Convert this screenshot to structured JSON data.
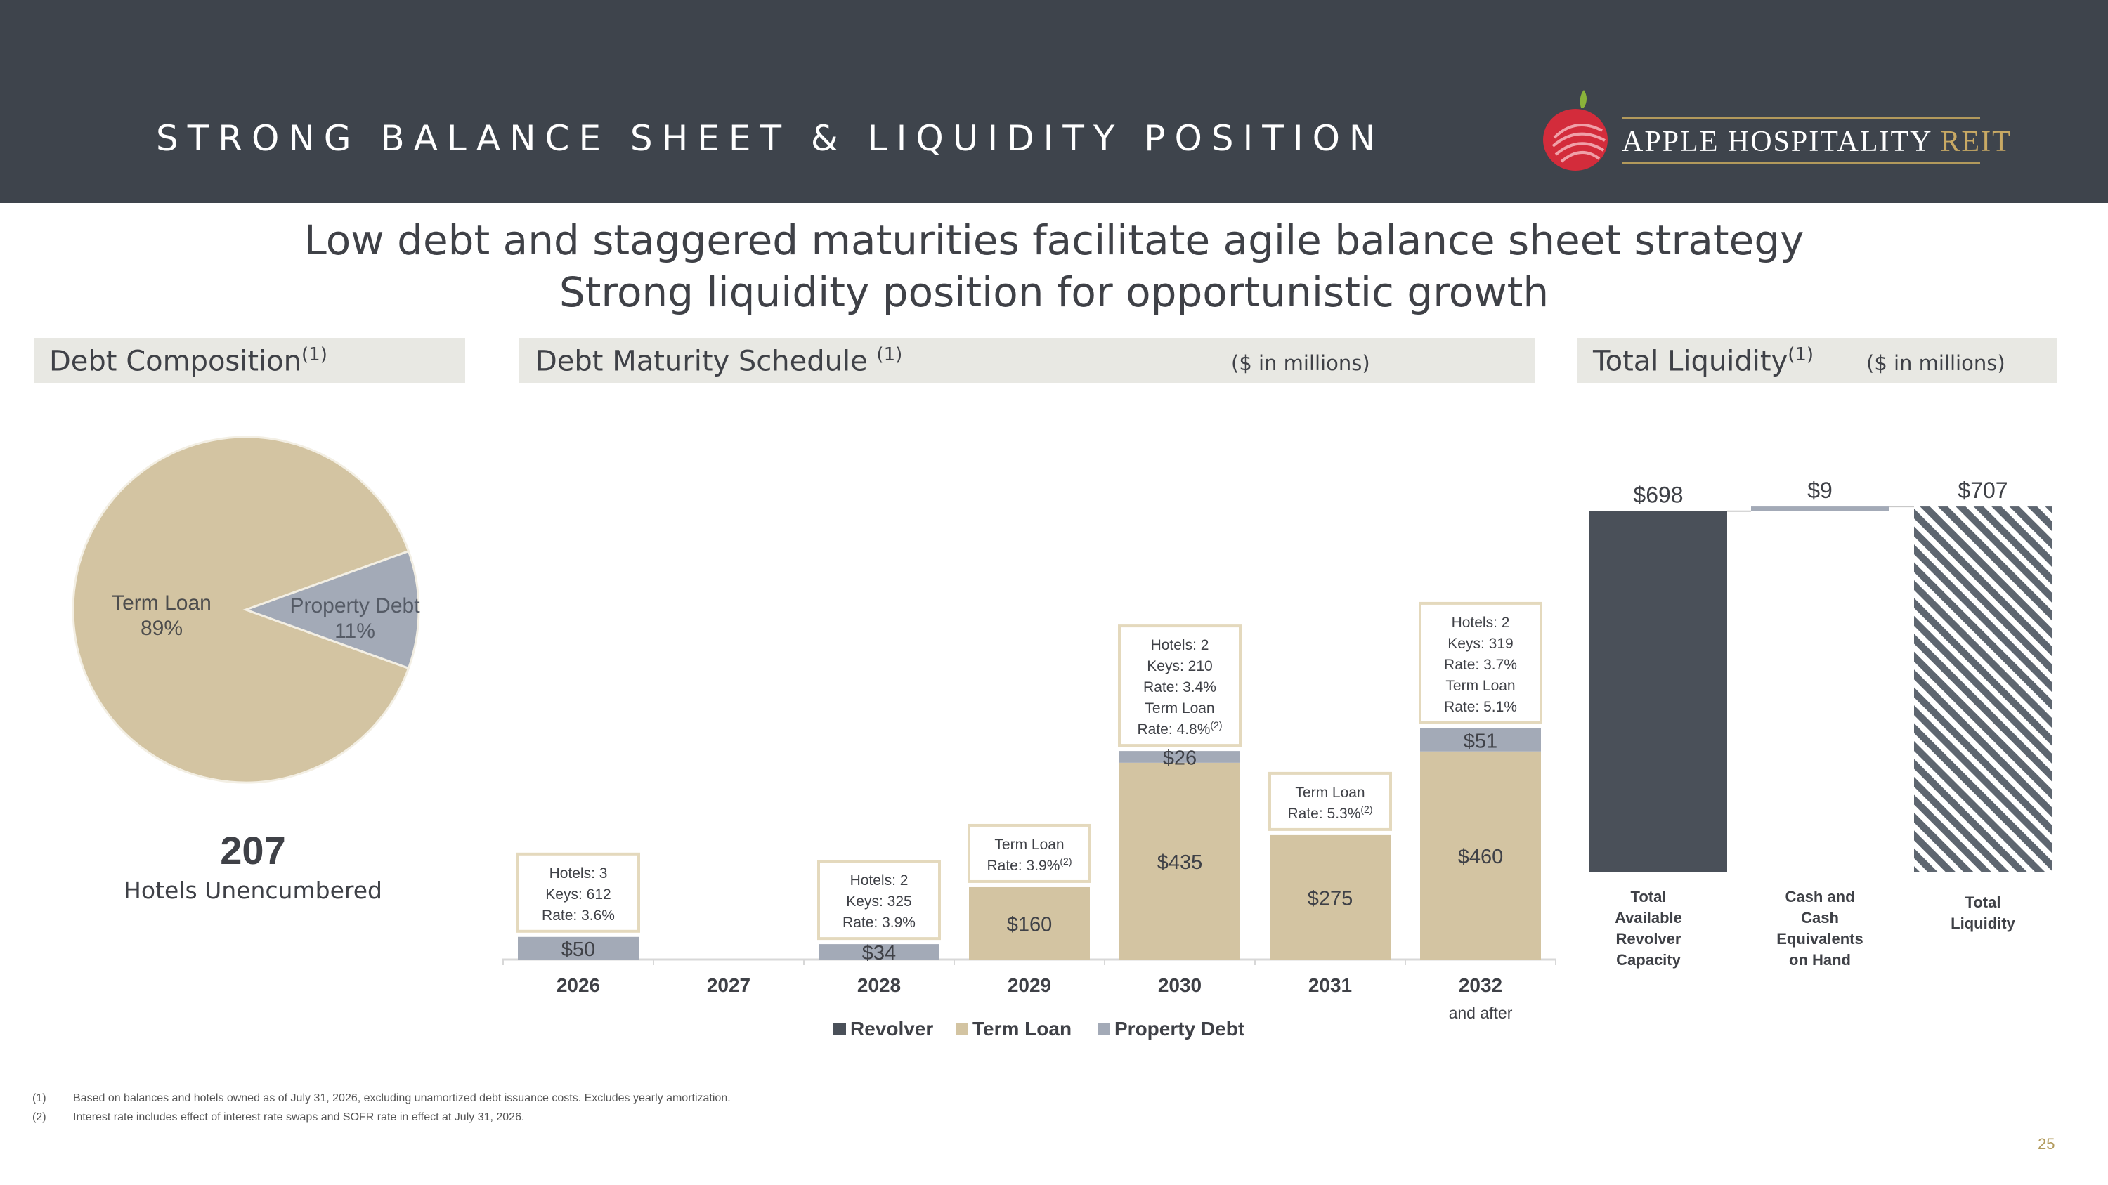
{
  "header": {
    "title": "STRONG BALANCE SHEET & LIQUIDITY POSITION",
    "brand_name": "APPLE HOSPITALITY",
    "brand_suffix": "REIT",
    "logo_icon": "apple-logo-icon"
  },
  "headline": {
    "line1": "Low debt and staggered maturities facilitate agile balance sheet strategy",
    "line2": "Strong liquidity position for opportunistic growth"
  },
  "panels": {
    "composition": {
      "title": "Debt Composition",
      "note": "(1)"
    },
    "maturity": {
      "title": "Debt Maturity Schedule ",
      "note": "(1)",
      "unit": "($ in millions)"
    },
    "liquidity": {
      "title": "Total Liquidity",
      "note": "(1)",
      "unit": "($ in millions)"
    }
  },
  "unencumbered": {
    "count": "207",
    "caption": "Hotels Unencumbered"
  },
  "colors": {
    "term_loan": "#d3c4a2",
    "property_debt": "#a3aab7",
    "revolver": "#4a5059",
    "header_bg": "#3e444c",
    "accent": "#b29a5c"
  },
  "chart_data": [
    {
      "type": "pie",
      "title": "Debt Composition",
      "slices": [
        {
          "label": "Term Loan",
          "percent_label": "89%",
          "value": 89,
          "color": "#d3c4a2"
        },
        {
          "label": "Property Debt",
          "percent_label": "11%",
          "value": 11,
          "color": "#a3aab7"
        }
      ]
    },
    {
      "type": "bar",
      "stacked": true,
      "title": "Debt Maturity Schedule",
      "unit": "($ in millions)",
      "categories": [
        "2026",
        "2027",
        "2028",
        "2029",
        "2030",
        "2031",
        "2032"
      ],
      "category_sublabels": [
        "",
        "",
        "",
        "",
        "",
        "",
        "and after"
      ],
      "series": [
        {
          "name": "Revolver",
          "color": "#4a5059",
          "values": [
            0,
            0,
            0,
            0,
            0,
            0,
            0
          ],
          "labels": [
            "",
            "",
            "",
            "",
            "",
            "",
            ""
          ]
        },
        {
          "name": "Term Loan",
          "color": "#d3c4a2",
          "values": [
            0,
            0,
            0,
            160,
            435,
            275,
            460
          ],
          "labels": [
            "",
            "",
            "",
            "$160",
            "$435",
            "$275",
            "$460"
          ]
        },
        {
          "name": "Property Debt",
          "color": "#a3aab7",
          "values": [
            50,
            0,
            34,
            0,
            26,
            0,
            51
          ],
          "labels": [
            "$50",
            "",
            "$34",
            "",
            "$26",
            "",
            "$51"
          ]
        }
      ],
      "annotations": [
        {
          "category": "2026",
          "lines": [
            "Hotels: 3",
            "Keys: 612",
            "Rate: 3.6%"
          ],
          "sup": ""
        },
        {
          "category": "2028",
          "lines": [
            "Hotels: 2",
            "Keys: 325",
            "Rate: 3.9%"
          ],
          "sup": ""
        },
        {
          "category": "2029",
          "lines": [
            "Term Loan",
            "Rate: 3.9%"
          ],
          "sup": "(2)"
        },
        {
          "category": "2030",
          "lines": [
            "Hotels: 2",
            "Keys: 210",
            "Rate: 3.4%",
            "Term Loan",
            "Rate: 4.8%"
          ],
          "sup": "(2)"
        },
        {
          "category": "2031",
          "lines": [
            "Term Loan",
            "Rate: 5.3%"
          ],
          "sup": "(2)"
        },
        {
          "category": "2032",
          "lines": [
            "Hotels: 2",
            "Keys: 319",
            "Rate: 3.7%",
            "Term Loan",
            "Rate: 5.1%"
          ],
          "sup": ""
        }
      ],
      "legend": [
        "Revolver",
        "Term Loan",
        "Property Debt"
      ],
      "legend_position": "bottom"
    },
    {
      "type": "bar",
      "subtype": "waterfall",
      "title": "Total Liquidity",
      "unit": "($ in millions)",
      "categories": [
        [
          "Total",
          "Available",
          "Revolver",
          "Capacity"
        ],
        [
          "Cash and",
          "Cash",
          "Equivalents",
          "on Hand"
        ],
        [
          "Total",
          "Liquidity"
        ]
      ],
      "values": [
        698,
        9,
        707
      ],
      "labels": [
        "$698",
        "$9",
        "$707"
      ],
      "colors": [
        "#4a5059",
        "#a3aab7",
        "hatched"
      ]
    }
  ],
  "footnotes": [
    {
      "num": "(1)",
      "text": "Based on balances and hotels owned as of July 31, 2026, excluding unamortized debt issuance costs. Excludes yearly amortization."
    },
    {
      "num": "(2)",
      "text": "Interest rate includes effect of interest rate swaps and SOFR rate in effect at July 31, 2026."
    }
  ],
  "page_number": "25"
}
